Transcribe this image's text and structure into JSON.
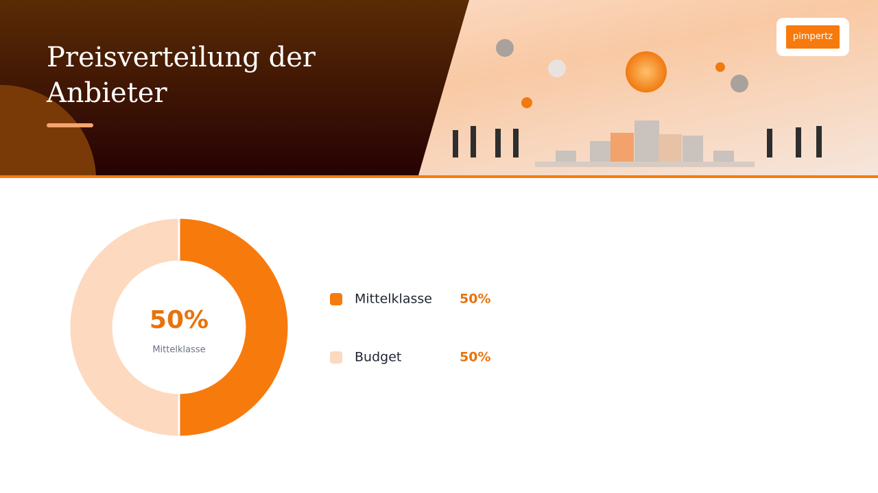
{
  "logo": "pimpertz",
  "chart_data": {
    "type": "donut",
    "title": "Preisverteilung der Anbieter",
    "categories": [
      "Mittelklasse",
      "Budget"
    ],
    "values": [
      50,
      50
    ],
    "value_labels": [
      "50%",
      "50%"
    ],
    "colors": [
      "#f77a0c",
      "#fdd9bf"
    ]
  }
}
